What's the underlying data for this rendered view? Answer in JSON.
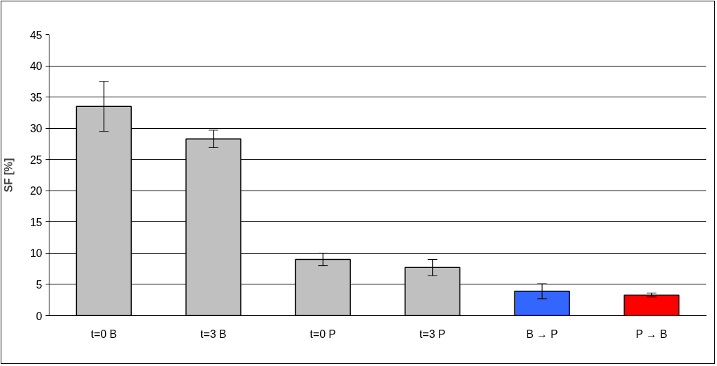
{
  "chart_data": {
    "type": "bar",
    "ylabel": "SF [%]",
    "categories": [
      "t=0 B",
      "t=3 B",
      "t=0 P",
      "t=3 P",
      "B → P",
      "P → B"
    ],
    "values": [
      33.5,
      28.3,
      9,
      7.7,
      3.9,
      3.3
    ],
    "colors": [
      "#c0c0c0",
      "#c0c0c0",
      "#c0c0c0",
      "#c0c0c0",
      "#3366ff",
      "#ff0000"
    ],
    "errors": [
      4,
      1.4,
      1,
      1.3,
      1.2,
      0.3
    ],
    "ylim": [
      0,
      45
    ],
    "yticks": [
      0,
      5,
      10,
      15,
      20,
      25,
      30,
      35,
      40,
      45
    ],
    "grid": "y"
  }
}
